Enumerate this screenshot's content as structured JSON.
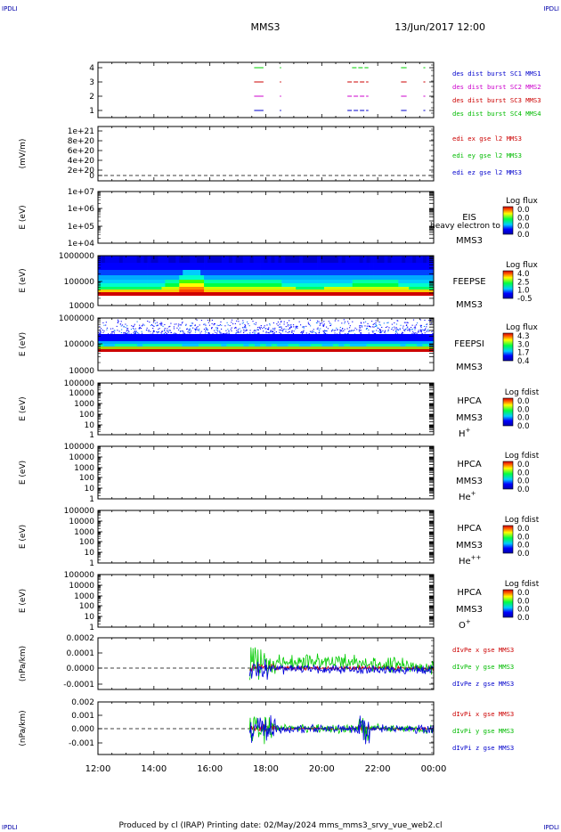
{
  "header": {
    "corner_left": "IPDLI",
    "corner_right": "IPDLI",
    "spacecraft": "MMS3",
    "datetime": "13/Jun/2017 12:00"
  },
  "footer": {
    "corner_left": "IPDLI",
    "corner_right": "IPDLI",
    "text": "Produced by cl (IRAP)   Printing date: 02/May/2024   mms_mms3_srvy_vue_web2.cl"
  },
  "chart_data": [
    {
      "type": "line",
      "panel": "burst",
      "ylabel": "",
      "yticks": [
        "4",
        "3",
        "2",
        "1"
      ],
      "ylim": [
        0.5,
        4.5
      ],
      "x_ticks": [
        "12:00",
        "14:00",
        "16:00",
        "18:00",
        "20:00",
        "22:00",
        "00:00"
      ],
      "legend": [
        {
          "text": "des dist burst SC1 MMS1",
          "color": "#0000cc"
        },
        {
          "text": "des dist burst SC2 MMS2",
          "color": "#cc00cc"
        },
        {
          "text": "des dist burst SC3 MMS3",
          "color": "#cc0000"
        },
        {
          "text": "des dist burst SC4 MMS4",
          "color": "#00bb00"
        }
      ],
      "series": [
        {
          "level": 4,
          "color": "#00cc00",
          "intervals": [
            [
              "17:35",
              "17:55"
            ],
            [
              "18:30",
              "18:33"
            ],
            [
              "21:05",
              "21:40"
            ],
            [
              "22:50",
              "23:02"
            ],
            [
              "23:38",
              "23:42"
            ]
          ]
        },
        {
          "level": 3,
          "color": "#cc0000",
          "intervals": [
            [
              "17:35",
              "17:55"
            ],
            [
              "18:30",
              "18:33"
            ],
            [
              "20:55",
              "21:40"
            ],
            [
              "22:50",
              "23:02"
            ],
            [
              "23:38",
              "23:42"
            ]
          ]
        },
        {
          "level": 2,
          "color": "#cc00cc",
          "intervals": [
            [
              "17:35",
              "17:55"
            ],
            [
              "18:30",
              "18:33"
            ],
            [
              "20:55",
              "21:40"
            ],
            [
              "22:50",
              "23:02"
            ],
            [
              "23:38",
              "23:42"
            ]
          ]
        },
        {
          "level": 1,
          "color": "#0000cc",
          "intervals": [
            [
              "17:35",
              "17:55"
            ],
            [
              "18:30",
              "18:33"
            ],
            [
              "20:55",
              "21:40"
            ],
            [
              "22:50",
              "23:02"
            ],
            [
              "23:38",
              "23:42"
            ]
          ]
        }
      ]
    },
    {
      "type": "line",
      "panel": "edi",
      "ylabel": "(mV/m)",
      "yticks": [
        "1e+21",
        "8e+20",
        "6e+20",
        "4e+20",
        "2e+20",
        "0"
      ],
      "ylim": [
        0,
        1e+21
      ],
      "zero_line": true,
      "legend": [
        {
          "text": "edi ex gse l2 MMS3",
          "color": "#cc0000"
        },
        {
          "text": "edi ey gse l2 MMS3",
          "color": "#00bb00"
        },
        {
          "text": "edi ez gse l2 MMS3",
          "color": "#0000cc"
        }
      ]
    },
    {
      "type": "heatmap",
      "panel": "eis",
      "ylabel": "E (eV)",
      "yticks": [
        "1e+07",
        "1e+06",
        "1e+05",
        "1e+04"
      ],
      "ylim": [
        10000.0,
        10000000.0
      ],
      "label_lines": [
        "EIS",
        "MMS3"
      ],
      "overlay_text": "heavy electron to",
      "colorbar_title": "Log flux",
      "colorbar_ticks": [
        "0.0",
        "0.0",
        "0.0",
        "0.0"
      ]
    },
    {
      "type": "heatmap",
      "panel": "feepse",
      "ylabel": "E (eV)",
      "yticks": [
        "1000000",
        "100000",
        "10000"
      ],
      "ylim": [
        10000,
        1000000
      ],
      "label_lines": [
        "FEEPSE",
        "MMS3"
      ],
      "colorbar_title": "Log flux",
      "colorbar_ticks": [
        "4.0",
        "2.5",
        "1.0",
        "-0.5"
      ],
      "intensity_profile": {
        "x": [
          "12:00",
          "14:00",
          "15:00",
          "15:30",
          "16:00",
          "17:00",
          "18:00",
          "19:00",
          "20:00",
          "21:00",
          "22:00",
          "23:00",
          "00:00"
        ],
        "level": [
          0.55,
          0.55,
          0.85,
          0.9,
          0.7,
          0.75,
          0.7,
          0.6,
          0.6,
          0.65,
          0.75,
          0.6,
          0.55
        ]
      }
    },
    {
      "type": "heatmap",
      "panel": "feepsi",
      "ylabel": "E (eV)",
      "yticks": [
        "1000000",
        "100000",
        "10000"
      ],
      "ylim": [
        10000,
        1000000
      ],
      "label_lines": [
        "FEEPSI",
        "MMS3"
      ],
      "colorbar_title": "Log flux",
      "colorbar_ticks": [
        "4.3",
        "3.0",
        "1.7",
        "0.4"
      ]
    },
    {
      "type": "heatmap",
      "panel": "hpca_h",
      "ylabel": "E (eV)",
      "yticks": [
        "100000",
        "10000",
        "1000",
        "100",
        "10",
        "1"
      ],
      "ylim": [
        1,
        100000
      ],
      "label_lines": [
        "HPCA",
        "MMS3"
      ],
      "species": "H",
      "species_sup": "+",
      "colorbar_title": "Log fdist",
      "colorbar_ticks": [
        "0.0",
        "0.0",
        "0.0",
        "0.0"
      ]
    },
    {
      "type": "heatmap",
      "panel": "hpca_he",
      "ylabel": "E (eV)",
      "yticks": [
        "100000",
        "10000",
        "1000",
        "100",
        "10",
        "1"
      ],
      "ylim": [
        1,
        100000
      ],
      "label_lines": [
        "HPCA",
        "MMS3"
      ],
      "species": "He",
      "species_sup": "+",
      "colorbar_title": "Log fdist",
      "colorbar_ticks": [
        "0.0",
        "0.0",
        "0.0",
        "0.0"
      ]
    },
    {
      "type": "heatmap",
      "panel": "hpca_he2",
      "ylabel": "E (eV)",
      "yticks": [
        "100000",
        "10000",
        "1000",
        "100",
        "10",
        "1"
      ],
      "ylim": [
        1,
        100000
      ],
      "label_lines": [
        "HPCA",
        "MMS3"
      ],
      "species": "He",
      "species_sup": "++",
      "colorbar_title": "Log fdist",
      "colorbar_ticks": [
        "0.0",
        "0.0",
        "0.0",
        "0.0"
      ]
    },
    {
      "type": "heatmap",
      "panel": "hpca_o",
      "ylabel": "E (eV)",
      "yticks": [
        "100000",
        "10000",
        "1000",
        "100",
        "10",
        "1"
      ],
      "ylim": [
        1,
        100000
      ],
      "label_lines": [
        "HPCA",
        "MMS3"
      ],
      "species": "O",
      "species_sup": "+",
      "colorbar_title": "Log fdist",
      "colorbar_ticks": [
        "0.0",
        "0.0",
        "0.0",
        "0.0"
      ]
    },
    {
      "type": "line",
      "panel": "divpe",
      "ylabel": "(nPa/km)",
      "yticks": [
        "0.0002",
        "0.0001",
        "0.0000",
        "-0.0001"
      ],
      "ylim": [
        -0.00018,
        0.0002
      ],
      "zero_line": true,
      "data_start": "17:25",
      "legend": [
        {
          "text": "dIvPe x gse MMS3",
          "color": "#cc0000"
        },
        {
          "text": "dIvPe y gse MMS3",
          "color": "#00bb00"
        },
        {
          "text": "dIvPe z gse MMS3",
          "color": "#0000cc"
        }
      ]
    },
    {
      "type": "line",
      "panel": "divpi",
      "ylabel": "(nPa/km)",
      "yticks": [
        "0.002",
        "0.001",
        "0.000",
        "-0.001"
      ],
      "ylim": [
        -0.0018,
        0.002
      ],
      "zero_line": true,
      "data_start": "17:25",
      "legend": [
        {
          "text": "dIvPi x gse MMS3",
          "color": "#cc0000"
        },
        {
          "text": "dIvPi y gse MMS3",
          "color": "#00bb00"
        },
        {
          "text": "dIvPi z gse MMS3",
          "color": "#0000cc"
        }
      ]
    }
  ]
}
